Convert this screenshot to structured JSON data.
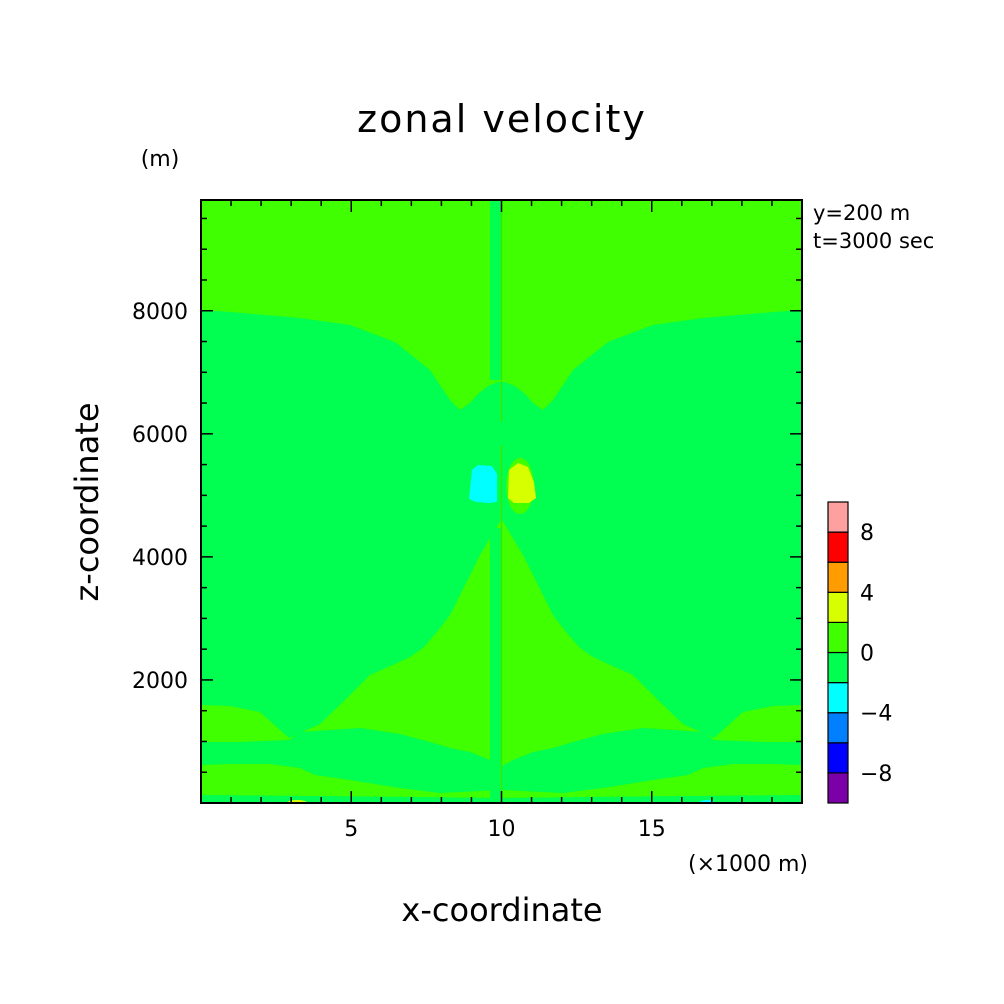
{
  "chart_data": {
    "type": "contour",
    "title": "zonal velocity",
    "xlabel": "x-coordinate",
    "ylabel": "z-coordinate",
    "x_unit_label": "(×1000 m)",
    "y_unit_label": "(m)",
    "annotations": [
      "y=200 m",
      "t=3000 sec"
    ],
    "xlim": [
      0,
      20
    ],
    "ylim": [
      0,
      9800
    ],
    "x_ticks": [
      5,
      10,
      15
    ],
    "y_ticks": [
      2000,
      4000,
      6000,
      8000
    ],
    "grid": false,
    "legend_position": "right",
    "colorbar": {
      "levels": [
        -10,
        -8,
        -6,
        -4,
        -2,
        0,
        2,
        4,
        6,
        8,
        10
      ],
      "labels": [
        -8,
        -4,
        0,
        4,
        8
      ],
      "colors": [
        "#7b00a8",
        "#0000ff",
        "#0080ff",
        "#00ffff",
        "#00ff50",
        "#40ff00",
        "#d8ff00",
        "#ff9c00",
        "#ff0000",
        "#ffa0a0"
      ]
    },
    "regions": [
      {
        "name": "background",
        "range": [
          0,
          2
        ],
        "color": "#40ff00"
      },
      {
        "name": "left-mid-lobe",
        "range": [
          -2,
          0
        ],
        "color": "#00ff50"
      },
      {
        "name": "right-mid-lobe",
        "range": [
          -2,
          0
        ],
        "color": "#00ff50"
      },
      {
        "name": "left-low-band",
        "range": [
          -2,
          0
        ],
        "color": "#00ff50"
      },
      {
        "name": "right-low-band",
        "range": [
          -2,
          0
        ],
        "color": "#00ff50"
      },
      {
        "name": "left-bottom-band",
        "range": [
          -2,
          0
        ],
        "color": "#00ff50"
      },
      {
        "name": "right-bottom-band",
        "range": [
          -2,
          0
        ],
        "color": "#00ff50"
      },
      {
        "name": "central-left-strip",
        "range": [
          -2,
          0
        ],
        "color": "#00ff50"
      },
      {
        "name": "negative-core",
        "range": [
          -4,
          -2
        ],
        "color": "#00ffff"
      },
      {
        "name": "positive-core",
        "range": [
          2,
          4
        ],
        "color": "#d8ff00"
      }
    ]
  }
}
